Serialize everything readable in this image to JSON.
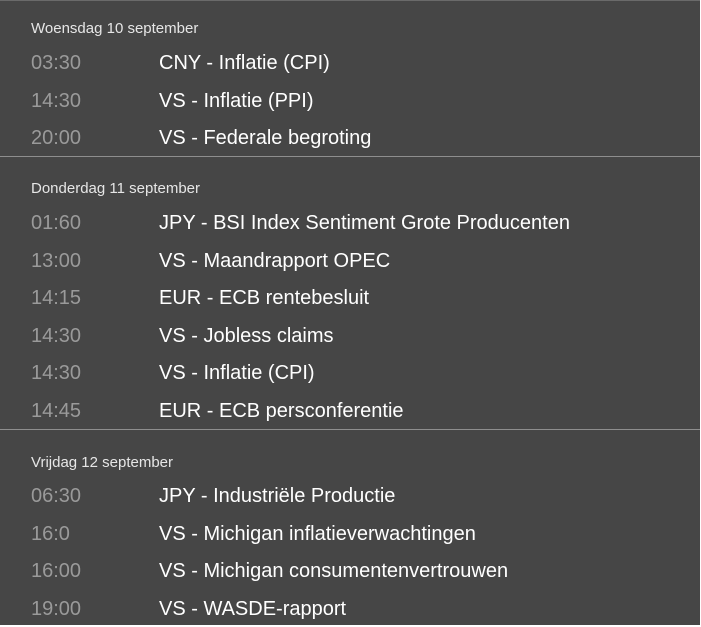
{
  "days": [
    {
      "header": "Woensdag 10 september",
      "events": [
        {
          "time": "03:30",
          "title": "CNY - Inflatie (CPI)"
        },
        {
          "time": "14:30",
          "title": "VS - Inflatie (PPI)"
        },
        {
          "time": "20:00",
          "title": "VS - Federale begroting"
        }
      ]
    },
    {
      "header": "Donderdag 11 september",
      "events": [
        {
          "time": "01:60",
          "title": "JPY - BSI Index Sentiment Grote Producenten"
        },
        {
          "time": "13:00",
          "title": "VS - Maandrapport OPEC"
        },
        {
          "time": "14:15",
          "title": "EUR - ECB rentebesluit"
        },
        {
          "time": "14:30",
          "title": "VS - Jobless claims"
        },
        {
          "time": "14:30",
          "title": "VS - Inflatie (CPI)"
        },
        {
          "time": "14:45",
          "title": "EUR - ECB persconferentie"
        }
      ]
    },
    {
      "header": "Vrijdag 12 september",
      "events": [
        {
          "time": "06:30",
          "title": "JPY - Industriële Productie"
        },
        {
          "time": "16:0",
          "title": "VS - Michigan inflatieverwachtingen"
        },
        {
          "time": "16:00",
          "title": "VS - Michigan consumentenvertrouwen"
        },
        {
          "time": "19:00",
          "title": "VS - WASDE-rapport"
        }
      ]
    }
  ]
}
